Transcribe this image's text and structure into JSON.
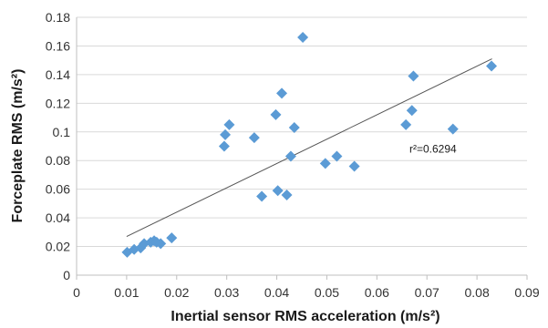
{
  "chart_data": {
    "type": "scatter",
    "title": "",
    "xlabel": "Inertial sensor RMS acceleration (m/s²)",
    "ylabel": "Forceplate RMS (m/s²)",
    "xlim": [
      0,
      0.09
    ],
    "ylim": [
      0,
      0.18
    ],
    "x_ticks": [
      "0",
      "0.01",
      "0.02",
      "0.03",
      "0.04",
      "0.05",
      "0.06",
      "0.07",
      "0.08",
      "0.09"
    ],
    "y_ticks": [
      "0",
      "0.02",
      "0.04",
      "0.06",
      "0.08",
      "0.1",
      "0.12",
      "0.14",
      "0.16",
      "0.18"
    ],
    "grid": "horizontal",
    "legend": "none",
    "marker": "diamond",
    "colors": {
      "points": "#5b9bd5",
      "trendline": "#555555"
    },
    "series": [
      {
        "x": [
          0.0101,
          0.0115,
          0.0128,
          0.0135,
          0.0148,
          0.0155,
          0.016,
          0.0168,
          0.019,
          0.0295,
          0.0297,
          0.0305,
          0.0355,
          0.037,
          0.0398,
          0.0402,
          0.041,
          0.042,
          0.0428,
          0.0435,
          0.0452,
          0.0497,
          0.052,
          0.0555,
          0.0658,
          0.067,
          0.0673,
          0.0752,
          0.0829
        ],
        "y": [
          0.016,
          0.018,
          0.019,
          0.022,
          0.023,
          0.024,
          0.023,
          0.022,
          0.026,
          0.09,
          0.098,
          0.105,
          0.096,
          0.055,
          0.112,
          0.059,
          0.127,
          0.056,
          0.083,
          0.103,
          0.166,
          0.078,
          0.083,
          0.076,
          0.105,
          0.115,
          0.139,
          0.102,
          0.146
        ]
      }
    ],
    "trendline": {
      "type": "linear",
      "x": [
        0.01,
        0.083
      ],
      "y": [
        0.027,
        0.151
      ]
    },
    "annotations": [
      {
        "text": "r²=0.6294",
        "x": 0.0665,
        "y": 0.0857
      }
    ]
  }
}
